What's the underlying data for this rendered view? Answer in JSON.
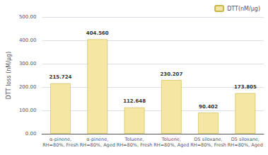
{
  "chart_data": {
    "type": "bar",
    "categories": [
      "α-pinene,\nRH=80%, Fresh",
      "α-pinene,\nRH=80%, Aged",
      "Toluene,\nRH=80%, Fresh",
      "Toluene,\nRH=80%, Aged",
      "D5 siloxane,\nRH=80%, Fresh",
      "D5 siloxane,\nRH=80%, Aged"
    ],
    "series": [
      {
        "name": "DTT(nM/μg)",
        "color": "#f5e6a3",
        "values": [
          215.724,
          404.56,
          112.648,
          230.207,
          90.402,
          173.805
        ],
        "value_labels": [
          "215.724",
          "404.560",
          "112.648",
          "230.207",
          "90.402",
          "173.805"
        ]
      }
    ],
    "ylabel": "DTT loss (nM/μg)",
    "ylim": [
      0,
      500
    ],
    "yticks": [
      {
        "value": 0,
        "label": "0.00"
      },
      {
        "value": 100,
        "label": "100.00"
      },
      {
        "value": 200,
        "label": "200.00"
      },
      {
        "value": 300,
        "label": "300.00"
      },
      {
        "value": 400,
        "label": "400.00"
      },
      {
        "value": 500,
        "label": "500.00"
      }
    ],
    "grid": true,
    "legend": "upper right",
    "data_labels": true
  }
}
